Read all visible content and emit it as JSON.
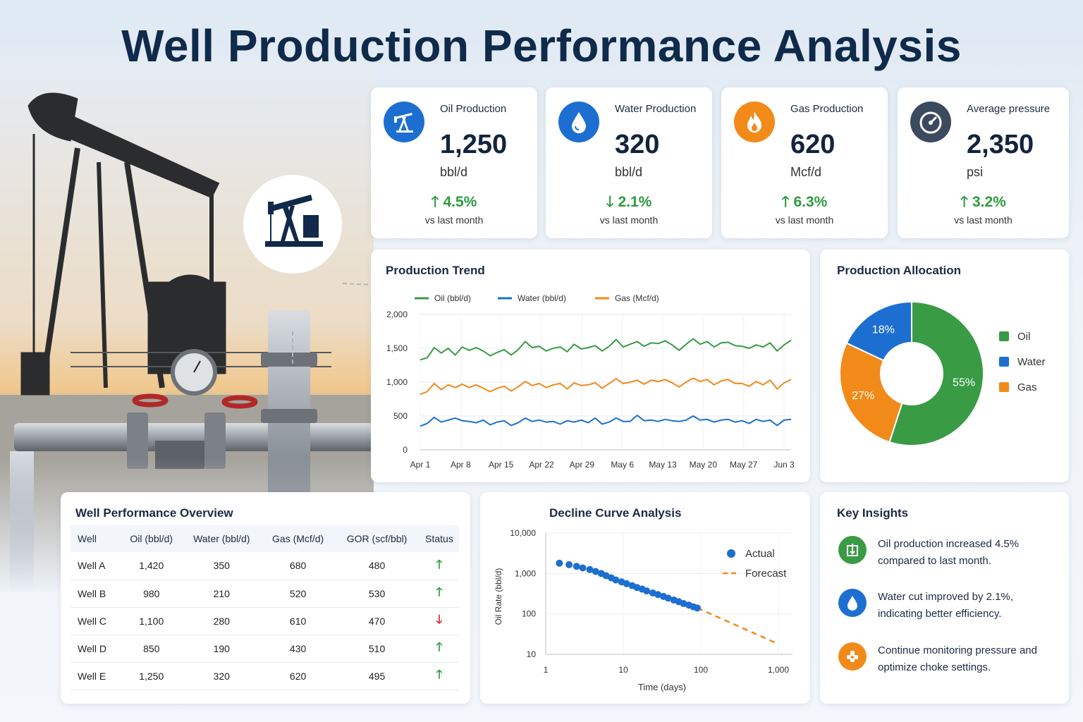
{
  "title": "Well Production Performance Analysis",
  "colors": {
    "oil": "#3a9b45",
    "water": "#1c6fd0",
    "gas": "#f28a1a",
    "pressure": "#3b4a5e",
    "up": "#2e9b3f",
    "down": "#d22a2a"
  },
  "kpis": [
    {
      "label": "Oil Production",
      "value": "1,250",
      "unit": "bbl/d",
      "change": "4.5%",
      "direction": "up",
      "vs": "vs last month",
      "icon": "pumpjack-icon"
    },
    {
      "label": "Water Production",
      "value": "320",
      "unit": "bbl/d",
      "change": "2.1%",
      "direction": "down",
      "vs": "vs last month",
      "icon": "water-drop-icon"
    },
    {
      "label": "Gas Production",
      "value": "620",
      "unit": "Mcf/d",
      "change": "6.3%",
      "direction": "up",
      "vs": "vs last month",
      "icon": "flame-icon"
    },
    {
      "label": "Average pressure",
      "value": "2,350",
      "unit": "psi",
      "change": "3.2%",
      "direction": "up",
      "vs": "vs last month",
      "icon": "gauge-icon"
    }
  ],
  "trend": {
    "title": "Production Trend"
  },
  "allocation": {
    "title": "Production Allocation"
  },
  "table": {
    "title": "Well Performance Overview",
    "headers": [
      "Well",
      "Oil (bbl/d)",
      "Water (bbl/d)",
      "Gas (Mcf/d)",
      "GOR (scf/bbl)",
      "Status"
    ],
    "rows": [
      {
        "well": "Well A",
        "oil": "1,420",
        "water": "350",
        "gas": "680",
        "gor": "480",
        "status": "up"
      },
      {
        "well": "Well B",
        "oil": "980",
        "water": "210",
        "gas": "520",
        "gor": "530",
        "status": "up"
      },
      {
        "well": "Well C",
        "oil": "1,100",
        "water": "280",
        "gas": "610",
        "gor": "470",
        "status": "down"
      },
      {
        "well": "Well D",
        "oil": "850",
        "water": "190",
        "gas": "430",
        "gor": "510",
        "status": "up"
      },
      {
        "well": "Well E",
        "oil": "1,250",
        "water": "320",
        "gas": "620",
        "gor": "495",
        "status": "up"
      }
    ]
  },
  "decline": {
    "title": "Decline Curve Analysis"
  },
  "insights": {
    "title": "Key Insights",
    "items": [
      {
        "text": "Oil production increased 4.5% compared to last month.",
        "icon": "pumpjack-badge-icon",
        "color": "#3a9b45"
      },
      {
        "text": "Water cut improved by 2.1%, indicating better efficiency.",
        "icon": "water-drop-icon",
        "color": "#1c6fd0"
      },
      {
        "text": "Continue monitoring pressure and optimize choke settings.",
        "icon": "valve-icon",
        "color": "#f28a1a"
      }
    ]
  },
  "chart_data": [
    {
      "type": "line",
      "title": "Production Trend",
      "x_ticks": [
        "Apr 1",
        "Apr 8",
        "Apr 15",
        "Apr 22",
        "Apr 29",
        "May 6",
        "May 13",
        "May 20",
        "May 27",
        "Jun 3"
      ],
      "ylim": [
        0,
        2000
      ],
      "y_ticks": [
        "0",
        "500",
        "1,000",
        "1,500",
        "2,000"
      ],
      "grid": true,
      "legend": "top",
      "series": [
        {
          "name": "Oil (bbl/d)",
          "color": "#3a9b45",
          "values": [
            1330,
            1360,
            1510,
            1430,
            1500,
            1400,
            1520,
            1470,
            1510,
            1460,
            1390,
            1440,
            1480,
            1400,
            1480,
            1600,
            1510,
            1530,
            1460,
            1500,
            1520,
            1450,
            1560,
            1490,
            1510,
            1540,
            1460,
            1530,
            1630,
            1520,
            1560,
            1600,
            1530,
            1580,
            1570,
            1610,
            1550,
            1470,
            1560,
            1640,
            1560,
            1600,
            1520,
            1580,
            1590,
            1540,
            1530,
            1500,
            1550,
            1520,
            1580,
            1460,
            1550,
            1620
          ]
        },
        {
          "name": "Water (bbl/d)",
          "color": "#1c6fd0",
          "values": [
            350,
            390,
            480,
            410,
            440,
            470,
            430,
            420,
            400,
            440,
            370,
            410,
            430,
            360,
            400,
            470,
            420,
            440,
            410,
            420,
            380,
            430,
            410,
            440,
            400,
            470,
            380,
            410,
            470,
            420,
            420,
            510,
            430,
            440,
            420,
            450,
            430,
            420,
            440,
            500,
            440,
            450,
            410,
            440,
            450,
            410,
            430,
            390,
            450,
            420,
            440,
            360,
            440,
            450
          ]
        },
        {
          "name": "Gas (Mcf/d)",
          "color": "#f28a1a",
          "values": [
            820,
            860,
            980,
            890,
            960,
            920,
            970,
            920,
            960,
            910,
            860,
            910,
            940,
            870,
            930,
            1010,
            950,
            980,
            920,
            960,
            980,
            900,
            990,
            950,
            960,
            990,
            910,
            980,
            1050,
            980,
            1000,
            1030,
            970,
            1030,
            1010,
            1040,
            990,
            930,
            1000,
            1060,
            1010,
            1040,
            960,
            1020,
            1040,
            980,
            980,
            940,
            1010,
            960,
            1030,
            900,
            990,
            1040
          ]
        }
      ]
    },
    {
      "type": "pie",
      "title": "Production Allocation",
      "donut": true,
      "legend": "right",
      "slices": [
        {
          "label": "Oil",
          "value": 55,
          "color": "#3a9b45"
        },
        {
          "label": "Gas",
          "value": 27,
          "color": "#f28a1a"
        },
        {
          "label": "Water",
          "value": 18,
          "color": "#1c6fd0"
        }
      ]
    },
    {
      "type": "scatter",
      "title": "Decline Curve Analysis",
      "xlabel": "Time (days)",
      "ylabel": "Oil Rate (bbl/d)",
      "x_scale": "log",
      "y_scale": "log",
      "xlim": [
        1,
        1000
      ],
      "ylim": [
        10,
        10000
      ],
      "x_ticks": [
        "1",
        "10",
        "100",
        "1,000"
      ],
      "y_ticks": [
        "10",
        "100",
        "1,000",
        "10,000"
      ],
      "legend": "top-right",
      "series": [
        {
          "name": "Actual",
          "color": "#1c6fd0",
          "x": [
            1.5,
            2,
            2.5,
            3,
            3.7,
            4.4,
            5.2,
            6,
            7,
            8,
            9.5,
            11,
            13,
            15,
            17.5,
            20,
            24,
            28,
            33,
            38,
            45,
            52,
            60,
            70,
            80,
            90
          ],
          "y": [
            1800,
            1650,
            1500,
            1370,
            1250,
            1120,
            1000,
            880,
            780,
            690,
            620,
            560,
            500,
            450,
            410,
            370,
            330,
            300,
            270,
            245,
            220,
            200,
            180,
            165,
            150,
            140
          ]
        },
        {
          "name": "Forecast",
          "color": "#f28a1a",
          "style": "dashed",
          "x": [
            90,
            1000
          ],
          "y": [
            140,
            18
          ]
        }
      ]
    }
  ]
}
